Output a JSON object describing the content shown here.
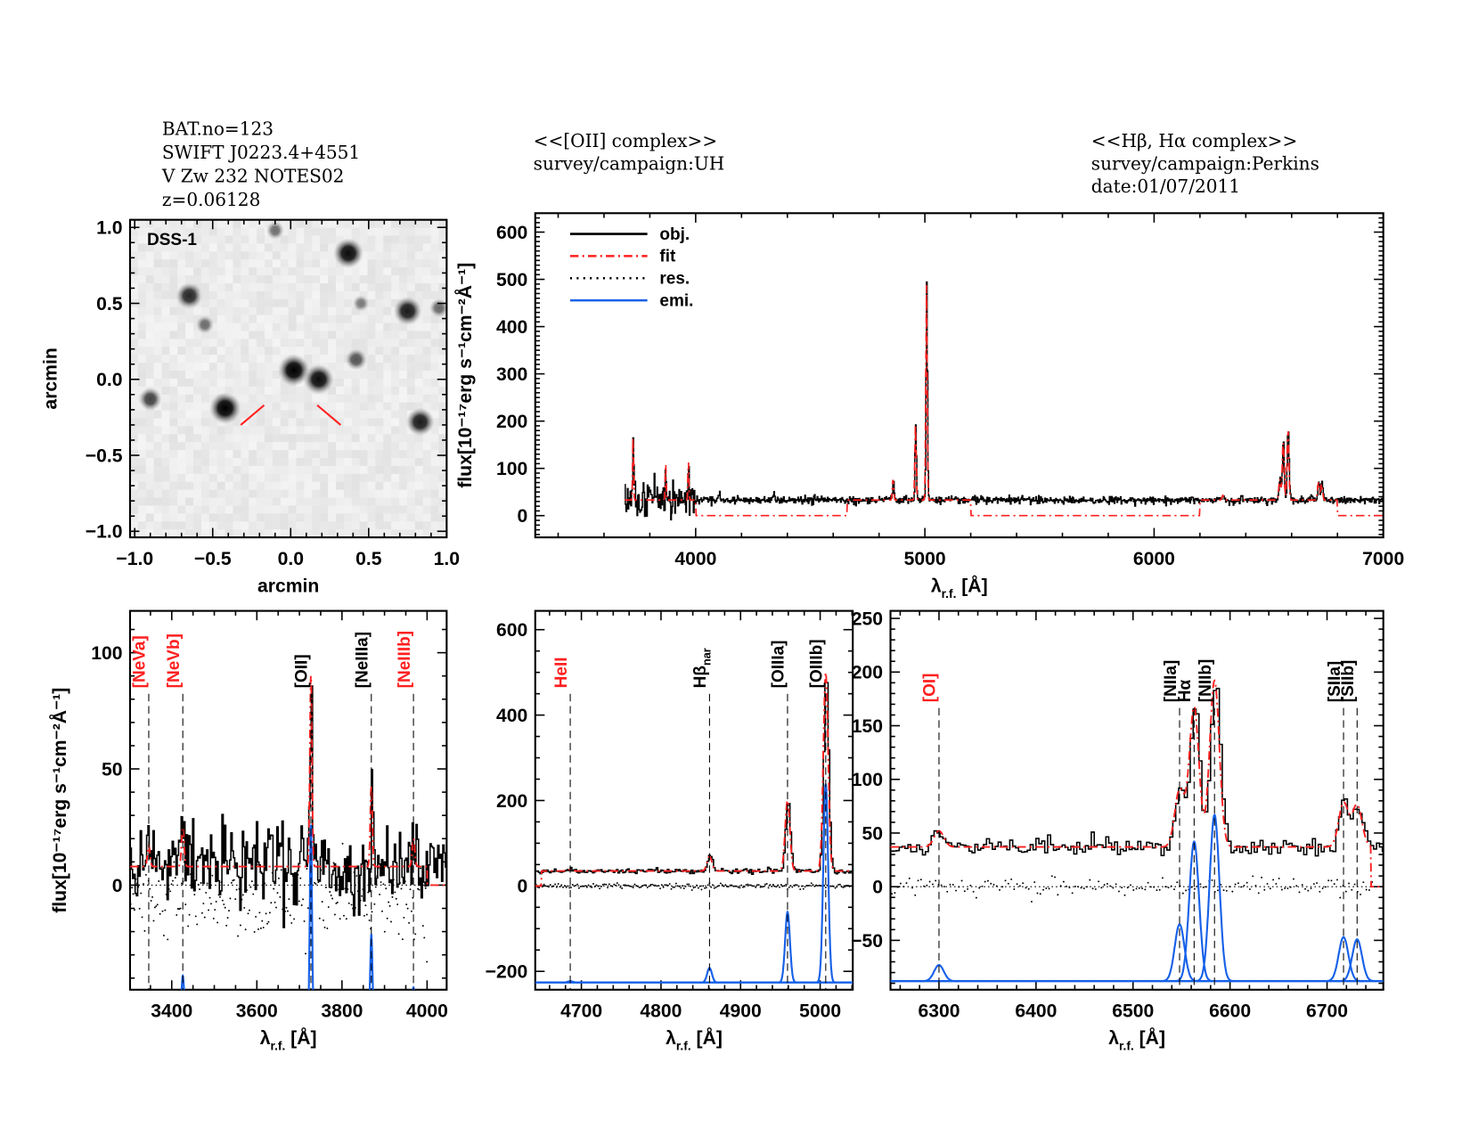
{
  "header": {
    "object_lines": [
      "BAT.no=123",
      "SWIFT J0223.4+4551",
      "V Zw 232 NOTES02",
      "z=0.06128"
    ],
    "oii_block": [
      "<<[OII] complex>>",
      "survey/campaign:UH"
    ],
    "balmer_block": [
      "<<Hβ, Hα complex>>",
      "survey/campaign:Perkins",
      "date:01/07/2011"
    ]
  },
  "colors": {
    "obj": "#000000",
    "fit": "#ff2020",
    "res": "#000000",
    "emi": "#1560e8",
    "line_label_red": "#ff2020"
  },
  "chart_data": [
    {
      "id": "image",
      "type": "heatmap",
      "label": "DSS-1",
      "xlabel": "arcmin",
      "ylabel": "arcmin",
      "xlim": [
        -1.03,
        1.0
      ],
      "ylim": [
        -1.04,
        1.05
      ],
      "xticks": [
        -1.0,
        -0.5,
        0.0,
        0.5,
        1.0
      ],
      "xtick_labels": [
        "−1.0",
        "−0.5",
        "0.0",
        "0.5",
        "1.0"
      ],
      "yticks": [
        -1.0,
        -0.5,
        0.0,
        0.5,
        1.0
      ],
      "ytick_labels": [
        "−1.0",
        "−0.5",
        "0.0",
        "0.5",
        "1.0"
      ],
      "sources": [
        {
          "x": 0.37,
          "y": 0.83,
          "b": 1.0
        },
        {
          "x": -0.65,
          "y": 0.55,
          "b": 0.8
        },
        {
          "x": 0.75,
          "y": 0.45,
          "b": 0.9
        },
        {
          "x": 0.95,
          "y": 0.47,
          "b": 0.35
        },
        {
          "x": -0.55,
          "y": 0.36,
          "b": 0.3
        },
        {
          "x": 0.42,
          "y": 0.13,
          "b": 0.5
        },
        {
          "x": 0.02,
          "y": 0.06,
          "b": 1.1
        },
        {
          "x": 0.18,
          "y": 0.0,
          "b": 1.0
        },
        {
          "x": -0.42,
          "y": -0.19,
          "b": 1.1
        },
        {
          "x": -0.9,
          "y": -0.13,
          "b": 0.6
        },
        {
          "x": 0.83,
          "y": -0.28,
          "b": 0.9
        },
        {
          "x": -0.1,
          "y": 0.98,
          "b": 0.3
        },
        {
          "x": 0.45,
          "y": 0.5,
          "b": 0.2
        }
      ],
      "markers": [
        [
          [
            -0.32,
            -0.3
          ],
          [
            -0.17,
            -0.17
          ]
        ],
        [
          [
            0.17,
            -0.17
          ],
          [
            0.32,
            -0.3
          ]
        ]
      ]
    },
    {
      "id": "full",
      "type": "line",
      "xlabel": {
        "main": "λ",
        "sub": "r.f.",
        "unit": " [Å]"
      },
      "ylabel": "flux[10⁻¹⁷erg s⁻¹cm⁻²Å⁻¹]",
      "xlim": [
        3300,
        7000
      ],
      "ylim": [
        -46,
        640
      ],
      "xticks": [
        4000,
        5000,
        6000,
        7000
      ],
      "xtick_labels": [
        "4000",
        "5000",
        "6000",
        "7000"
      ],
      "yticks": [
        0,
        100,
        200,
        300,
        400,
        500,
        600
      ],
      "ytick_labels": [
        "0",
        "100",
        "200",
        "300",
        "400",
        "500",
        "600"
      ],
      "legend": {
        "placement": "top-left",
        "entries": [
          "obj.",
          "fit",
          "res.",
          "emi."
        ]
      },
      "obj_range": [
        3690,
        7000
      ],
      "continuum": 33,
      "noise": [
        {
          "below": 4000,
          "sigma": 22
        },
        {
          "below": 7001,
          "sigma": 4
        }
      ],
      "fit_zero_ranges": [
        [
          4000,
          4660
        ],
        [
          5200,
          6200
        ],
        [
          6800,
          7000
        ]
      ],
      "lines": [
        [
          3727,
          150,
          2
        ],
        [
          3869,
          85,
          2
        ],
        [
          3968,
          90,
          2
        ],
        [
          4101,
          15,
          3
        ],
        [
          4340,
          18,
          3
        ],
        [
          4861,
          45,
          3
        ],
        [
          4959,
          160,
          3
        ],
        [
          5007,
          455,
          3
        ],
        [
          6300,
          10,
          4
        ],
        [
          6548,
          45,
          4
        ],
        [
          6563,
          125,
          4
        ],
        [
          6584,
          150,
          4
        ],
        [
          6717,
          38,
          4
        ],
        [
          6731,
          35,
          4
        ]
      ]
    },
    {
      "id": "oii",
      "type": "line",
      "xlabel": {
        "main": "λ",
        "sub": "r.f.",
        "unit": " [Å]"
      },
      "ylabel": "flux[10⁻¹⁷erg s⁻¹cm⁻²Å⁻¹]",
      "xlim": [
        3302,
        4046
      ],
      "ylim": [
        -45,
        118
      ],
      "xticks": [
        3400,
        3600,
        3800,
        4000
      ],
      "xtick_labels": [
        "3400",
        "3600",
        "3800",
        "4000"
      ],
      "yticks": [
        0,
        50,
        100
      ],
      "ytick_labels": [
        "0",
        "50",
        "100"
      ],
      "continuum": 8,
      "fit_range": [
        3302,
        4000
      ],
      "noise_sigma": 9,
      "res_offset": -6,
      "emi_baseline": -56,
      "lines": [
        {
          "label": "[NeVa]",
          "wave": 3346,
          "amp": 9,
          "sigma": 3,
          "color": "red"
        },
        {
          "label": "[NeVb]",
          "wave": 3426,
          "amp": 17,
          "sigma": 3,
          "color": "red"
        },
        {
          "label": "[OII]",
          "wave": 3727,
          "amp": 82,
          "sigma": 2.5,
          "color": "black"
        },
        {
          "label": "[NeIIIa]",
          "wave": 3869,
          "amp": 35,
          "sigma": 2.5,
          "color": "black"
        },
        {
          "label": "[NeIIIb]",
          "wave": 3968,
          "amp": 12,
          "sigma": 3,
          "color": "red"
        }
      ]
    },
    {
      "id": "hb",
      "type": "line",
      "xlabel": {
        "main": "λ",
        "sub": "r.f.",
        "unit": " [Å]"
      },
      "xlim": [
        4642,
        5041
      ],
      "ylim": [
        -243,
        644
      ],
      "xticks": [
        4700,
        4800,
        4900,
        5000
      ],
      "xtick_labels": [
        "4700",
        "4800",
        "4900",
        "5000"
      ],
      "yticks": [
        -200,
        0,
        200,
        400,
        600
      ],
      "ytick_labels": [
        "−200",
        "0",
        "200",
        "400",
        "600"
      ],
      "continuum": 35,
      "fit_range": [
        4650,
        5041
      ],
      "noise_sigma": 3,
      "res_offset": 0,
      "emi_baseline": -226,
      "lines": [
        {
          "label": "HeII",
          "wave": 4686,
          "amp": 3,
          "sigma": 3,
          "color": "red"
        },
        {
          "label": "Hβ",
          "sub": "nar",
          "wave": 4861,
          "amp": 34,
          "sigma": 3,
          "color": "black"
        },
        {
          "label": "[OIIIa]",
          "wave": 4959,
          "amp": 165,
          "sigma": 3,
          "color": "black"
        },
        {
          "label": "[OIIIb]",
          "wave": 5007,
          "amp": 465,
          "sigma": 3,
          "color": "black"
        }
      ]
    },
    {
      "id": "ha",
      "type": "line",
      "xlabel": {
        "main": "λ",
        "sub": "r.f.",
        "unit": " [Å]"
      },
      "xlim": [
        6250,
        6758
      ],
      "ylim": [
        -96,
        257
      ],
      "xticks": [
        6300,
        6400,
        6500,
        6600,
        6700
      ],
      "xtick_labels": [
        "6300",
        "6400",
        "6500",
        "6600",
        "6700"
      ],
      "yticks": [
        -50,
        0,
        50,
        100,
        150,
        200,
        250
      ],
      "ytick_labels": [
        "−50",
        "0",
        "50",
        "100",
        "150",
        "200",
        "250"
      ],
      "continuum": 37,
      "fit_range": [
        6250,
        6745
      ],
      "noise_sigma": 4,
      "res_offset": 0,
      "emi_baseline": -88,
      "lines": [
        {
          "label": "[OI]",
          "wave": 6300,
          "amp": 15,
          "sigma": 5,
          "color": "red"
        },
        {
          "label": "[NIIa]",
          "wave": 6548,
          "amp": 53,
          "sigma": 5,
          "color": "black"
        },
        {
          "label": "Hα",
          "wave": 6563,
          "amp": 130,
          "sigma": 5,
          "color": "black"
        },
        {
          "label": "[NIIb]",
          "wave": 6584,
          "amp": 155,
          "sigma": 5,
          "color": "black"
        },
        {
          "label": "[SIIa]",
          "wave": 6717,
          "amp": 41,
          "sigma": 5,
          "color": "black"
        },
        {
          "label": "[SIIb]",
          "wave": 6731,
          "amp": 39,
          "sigma": 5,
          "color": "black"
        }
      ]
    }
  ]
}
